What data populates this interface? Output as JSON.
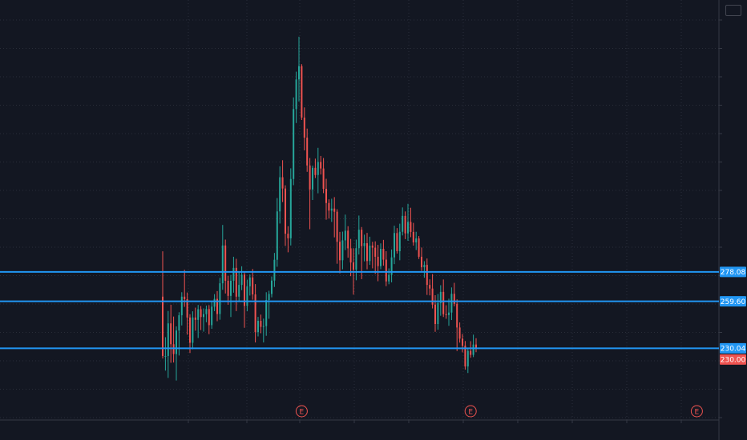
{
  "chart_data": {
    "type": "candlestick",
    "theme": {
      "background": "#131722",
      "grid": "#2a2e39",
      "up_color": "#26a69a",
      "down_color": "#ef5350",
      "level_color": "#2196f3",
      "current_price_color": "#ef5350"
    },
    "y_range": [
      195,
      440
    ],
    "grid": "dotted",
    "horizontal_levels": [
      {
        "value": 278.08,
        "label": "278.08"
      },
      {
        "value": 259.6,
        "label": "259.60"
      },
      {
        "value": 230.04,
        "label": "230.04"
      }
    ],
    "current_price": {
      "value": 230.0,
      "label": "230.00"
    },
    "events": [
      {
        "label": "E",
        "bar_index": 51
      },
      {
        "label": "E",
        "bar_index": 113
      },
      {
        "label": "E",
        "bar_index": 196
      }
    ],
    "candles": [
      [
        262.5,
        291.0,
        223.6,
        225.2
      ],
      [
        225.2,
        237.0,
        216.0,
        225.2
      ],
      [
        225.2,
        253.5,
        211.4,
        245.7
      ],
      [
        245.7,
        257.4,
        220.9,
        232.6
      ],
      [
        232.6,
        250.0,
        221.1,
        226.4
      ],
      [
        226.4,
        243.8,
        209.8,
        241.2
      ],
      [
        241.2,
        252.7,
        225.5,
        250.8
      ],
      [
        250.8,
        265.3,
        244.4,
        262.5
      ],
      [
        262.5,
        279.4,
        256.1,
        260.9
      ],
      [
        260.9,
        265.1,
        238.6,
        249.4
      ],
      [
        249.4,
        251.5,
        227.1,
        233.5
      ],
      [
        233.5,
        253.3,
        229.4,
        249.4
      ],
      [
        249.4,
        255.6,
        241.1,
        247.9
      ],
      [
        247.9,
        257.3,
        236.5,
        254.6
      ],
      [
        254.6,
        256.6,
        241.5,
        249.7
      ],
      [
        249.7,
        255.1,
        240.5,
        251.5
      ],
      [
        251.5,
        256.9,
        246.4,
        254.7
      ],
      [
        254.7,
        257.2,
        238.9,
        244.6
      ],
      [
        244.6,
        259.4,
        242.3,
        256.2
      ],
      [
        256.2,
        264.1,
        253.4,
        261.1
      ],
      [
        261.1,
        266.0,
        247.1,
        251.6
      ],
      [
        251.6,
        274.3,
        248.0,
        270.9
      ],
      [
        270.9,
        307.6,
        266.8,
        294.7
      ],
      [
        294.7,
        298.4,
        264.5,
        272.5
      ],
      [
        272.5,
        275.6,
        257.4,
        263.0
      ],
      [
        263.0,
        276.2,
        249.7,
        272.5
      ],
      [
        272.5,
        287.6,
        265.0,
        280.6
      ],
      [
        280.6,
        286.3,
        253.4,
        262.5
      ],
      [
        262.5,
        278.0,
        259.4,
        269.9
      ],
      [
        269.9,
        281.6,
        266.6,
        276.3
      ],
      [
        276.3,
        278.3,
        242.9,
        256.7
      ],
      [
        256.7,
        273.2,
        253.3,
        269.0
      ],
      [
        269.0,
        276.5,
        263.2,
        274.6
      ],
      [
        274.6,
        279.9,
        260.6,
        263.9
      ],
      [
        263.9,
        270.4,
        233.7,
        240.2
      ],
      [
        240.2,
        249.8,
        237.5,
        247.3
      ],
      [
        247.3,
        251.2,
        239.5,
        243.5
      ],
      [
        243.5,
        248.7,
        233.7,
        244.0
      ],
      [
        244.0,
        265.3,
        237.9,
        260.4
      ],
      [
        260.4,
        266.2,
        248.6,
        264.2
      ],
      [
        264.2,
        275.2,
        262.1,
        272.6
      ],
      [
        272.6,
        290.0,
        268.6,
        285.7
      ],
      [
        285.7,
        324.5,
        281.3,
        316.1
      ],
      [
        316.1,
        344.5,
        308.5,
        337.6
      ],
      [
        337.6,
        348.3,
        322.0,
        330.5
      ],
      [
        330.5,
        332.5,
        294.4,
        302.1
      ],
      [
        302.1,
        306.8,
        290.4,
        299.2
      ],
      [
        299.2,
        343.2,
        294.7,
        336.5
      ],
      [
        336.5,
        387.8,
        332.6,
        380.5
      ],
      [
        380.5,
        404.0,
        371.7,
        399.1
      ],
      [
        399.1,
        426.0,
        385.2,
        407.5
      ],
      [
        407.5,
        408.7,
        373.6,
        375.1
      ],
      [
        375.1,
        381.5,
        354.5,
        362.5
      ],
      [
        362.5,
        368.2,
        341.0,
        345.0
      ],
      [
        345.0,
        349.7,
        304.9,
        329.9
      ],
      [
        329.9,
        344.9,
        323.3,
        343.5
      ],
      [
        343.5,
        349.3,
        337.1,
        339.0
      ],
      [
        339.0,
        356.1,
        327.5,
        347.2
      ],
      [
        347.2,
        351.0,
        339.3,
        343.1
      ],
      [
        343.1,
        349.7,
        327.6,
        330.3
      ],
      [
        330.3,
        336.6,
        310.9,
        321.4
      ],
      [
        321.4,
        323.7,
        311.6,
        316.6
      ],
      [
        316.6,
        324.1,
        309.5,
        317.9
      ],
      [
        317.9,
        325.1,
        299.8,
        315.9
      ],
      [
        315.9,
        317.5,
        283.2,
        297.0
      ],
      [
        297.0,
        303.2,
        277.2,
        285.4
      ],
      [
        285.4,
        303.4,
        279.7,
        297.9
      ],
      [
        297.9,
        314.1,
        291.8,
        304.0
      ],
      [
        304.0,
        306.8,
        287.0,
        292.9
      ],
      [
        292.9,
        298.8,
        275.4,
        284.0
      ],
      [
        284.0,
        293.0,
        263.8,
        279.5
      ],
      [
        279.5,
        298.4,
        272.8,
        293.0
      ],
      [
        293.0,
        313.5,
        289.0,
        304.6
      ],
      [
        304.6,
        306.3,
        273.5,
        294.3
      ],
      [
        294.3,
        301.5,
        284.7,
        296.1
      ],
      [
        296.1,
        302.6,
        279.7,
        284.9
      ],
      [
        284.9,
        300.2,
        282.5,
        294.6
      ],
      [
        294.6,
        297.0,
        280.3,
        293.3
      ],
      [
        293.3,
        297.3,
        276.8,
        287.6
      ],
      [
        287.6,
        295.1,
        272.2,
        281.7
      ],
      [
        281.7,
        296.0,
        279.8,
        292.6
      ],
      [
        292.6,
        298.2,
        282.0,
        285.8
      ],
      [
        285.8,
        291.1,
        269.1,
        272.1
      ],
      [
        272.1,
        280.3,
        270.3,
        276.2
      ],
      [
        276.2,
        292.2,
        271.5,
        287.2
      ],
      [
        287.2,
        307.1,
        283.0,
        302.5
      ],
      [
        302.5,
        305.6,
        289.6,
        291.1
      ],
      [
        291.1,
        308.4,
        285.4,
        303.3
      ],
      [
        303.3,
        318.6,
        301.0,
        313.3
      ],
      [
        313.3,
        316.1,
        298.7,
        302.3
      ],
      [
        302.3,
        320.9,
        297.6,
        309.5
      ],
      [
        309.5,
        318.4,
        299.9,
        303.2
      ],
      [
        303.2,
        308.9,
        294.6,
        296.6
      ],
      [
        296.6,
        303.3,
        291.8,
        299.1
      ],
      [
        299.1,
        300.6,
        286.2,
        287.6
      ],
      [
        287.6,
        293.4,
        278.7,
        281.0
      ],
      [
        281.0,
        284.8,
        274.4,
        282.5
      ],
      [
        282.5,
        286.5,
        263.6,
        269.9
      ],
      [
        269.9,
        273.4,
        263.3,
        267.6
      ],
      [
        267.6,
        276.7,
        255.1,
        257.5
      ],
      [
        257.5,
        263.4,
        240.4,
        245.3
      ],
      [
        245.3,
        264.2,
        241.7,
        258.5
      ],
      [
        258.5,
        269.7,
        250.5,
        265.5
      ],
      [
        265.5,
        273.3,
        249.7,
        251.5
      ],
      [
        251.5,
        257.1,
        248.6,
        250.9
      ],
      [
        250.9,
        261.2,
        244.2,
        252.5
      ],
      [
        252.5,
        268.3,
        247.8,
        264.3
      ],
      [
        264.3,
        271.2,
        256.4,
        258.0
      ],
      [
        258.0,
        260.8,
        228.3,
        243.1
      ],
      [
        243.1,
        246.3,
        233.6,
        236.1
      ],
      [
        236.1,
        239.0,
        227.5,
        231.7
      ],
      [
        231.7,
        234.6,
        216.6,
        218.6
      ],
      [
        218.6,
        229.7,
        214.5,
        228.4
      ],
      [
        228.4,
        234.5,
        224.1,
        225.9
      ],
      [
        225.9,
        238.6,
        224.5,
        232.4
      ],
      [
        232.4,
        236.4,
        227.6,
        230.0
      ]
    ],
    "xlabel": "",
    "ylabel": "",
    "title": ""
  }
}
